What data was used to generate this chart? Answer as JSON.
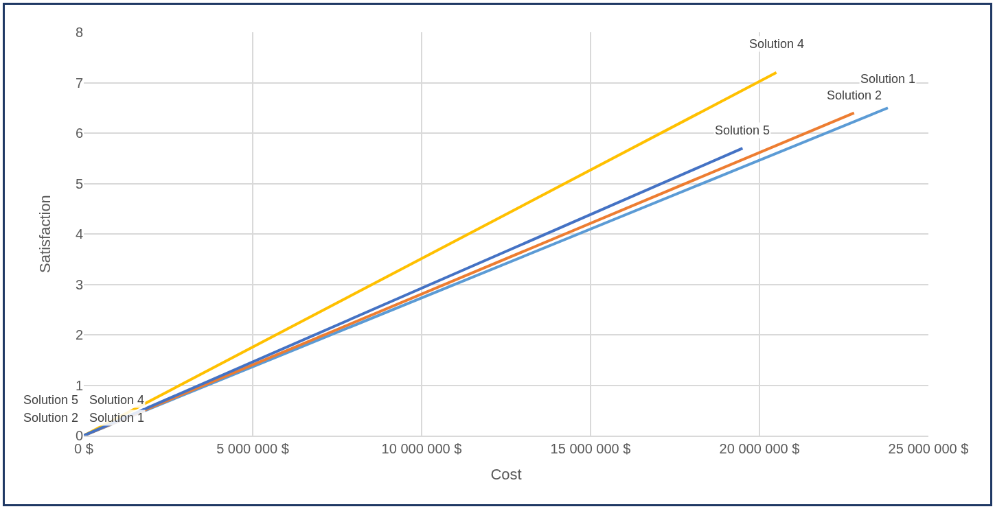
{
  "chart_data": {
    "type": "line",
    "xlabel": "Cost",
    "ylabel": "Satisfaction",
    "series": [
      {
        "color": "#5b9bd5",
        "x": [
          0,
          23800000
        ],
        "values": [
          0,
          6.5
        ],
        "value_labels": [
          "Solution 1",
          "Solution 1"
        ]
      },
      {
        "color": "#ed7d31",
        "x": [
          0,
          22800000
        ],
        "values": [
          0,
          6.4
        ],
        "value_labels": [
          "Solution 2",
          "Solution 2"
        ]
      },
      {
        "color": "#ffc000",
        "x": [
          0,
          20500000
        ],
        "values": [
          0,
          7.2
        ],
        "value_labels": [
          "Solution 4",
          "Solution 4"
        ]
      },
      {
        "color": "#4472c4",
        "x": [
          0,
          19500000
        ],
        "values": [
          0,
          5.7
        ],
        "value_labels": [
          "Solution 5",
          "Solution 5"
        ]
      }
    ],
    "xlim": [
      0,
      25000000
    ],
    "xticks": [
      {
        "value": 0,
        "label": "0 $"
      },
      {
        "value": 5000000,
        "label": "5 000 000 $"
      },
      {
        "value": 10000000,
        "label": "10 000 000 $"
      },
      {
        "value": 15000000,
        "label": "15 000 000 $"
      },
      {
        "value": 20000000,
        "label": "20 000 000 $"
      },
      {
        "value": 25000000,
        "label": "25 000 000 $"
      }
    ],
    "ylim": [
      0,
      8
    ],
    "yticks": [
      0,
      1,
      2,
      3,
      4,
      5,
      6,
      7,
      8
    ],
    "grid": true,
    "legend": false,
    "marker": "none",
    "line_style": "solid"
  }
}
